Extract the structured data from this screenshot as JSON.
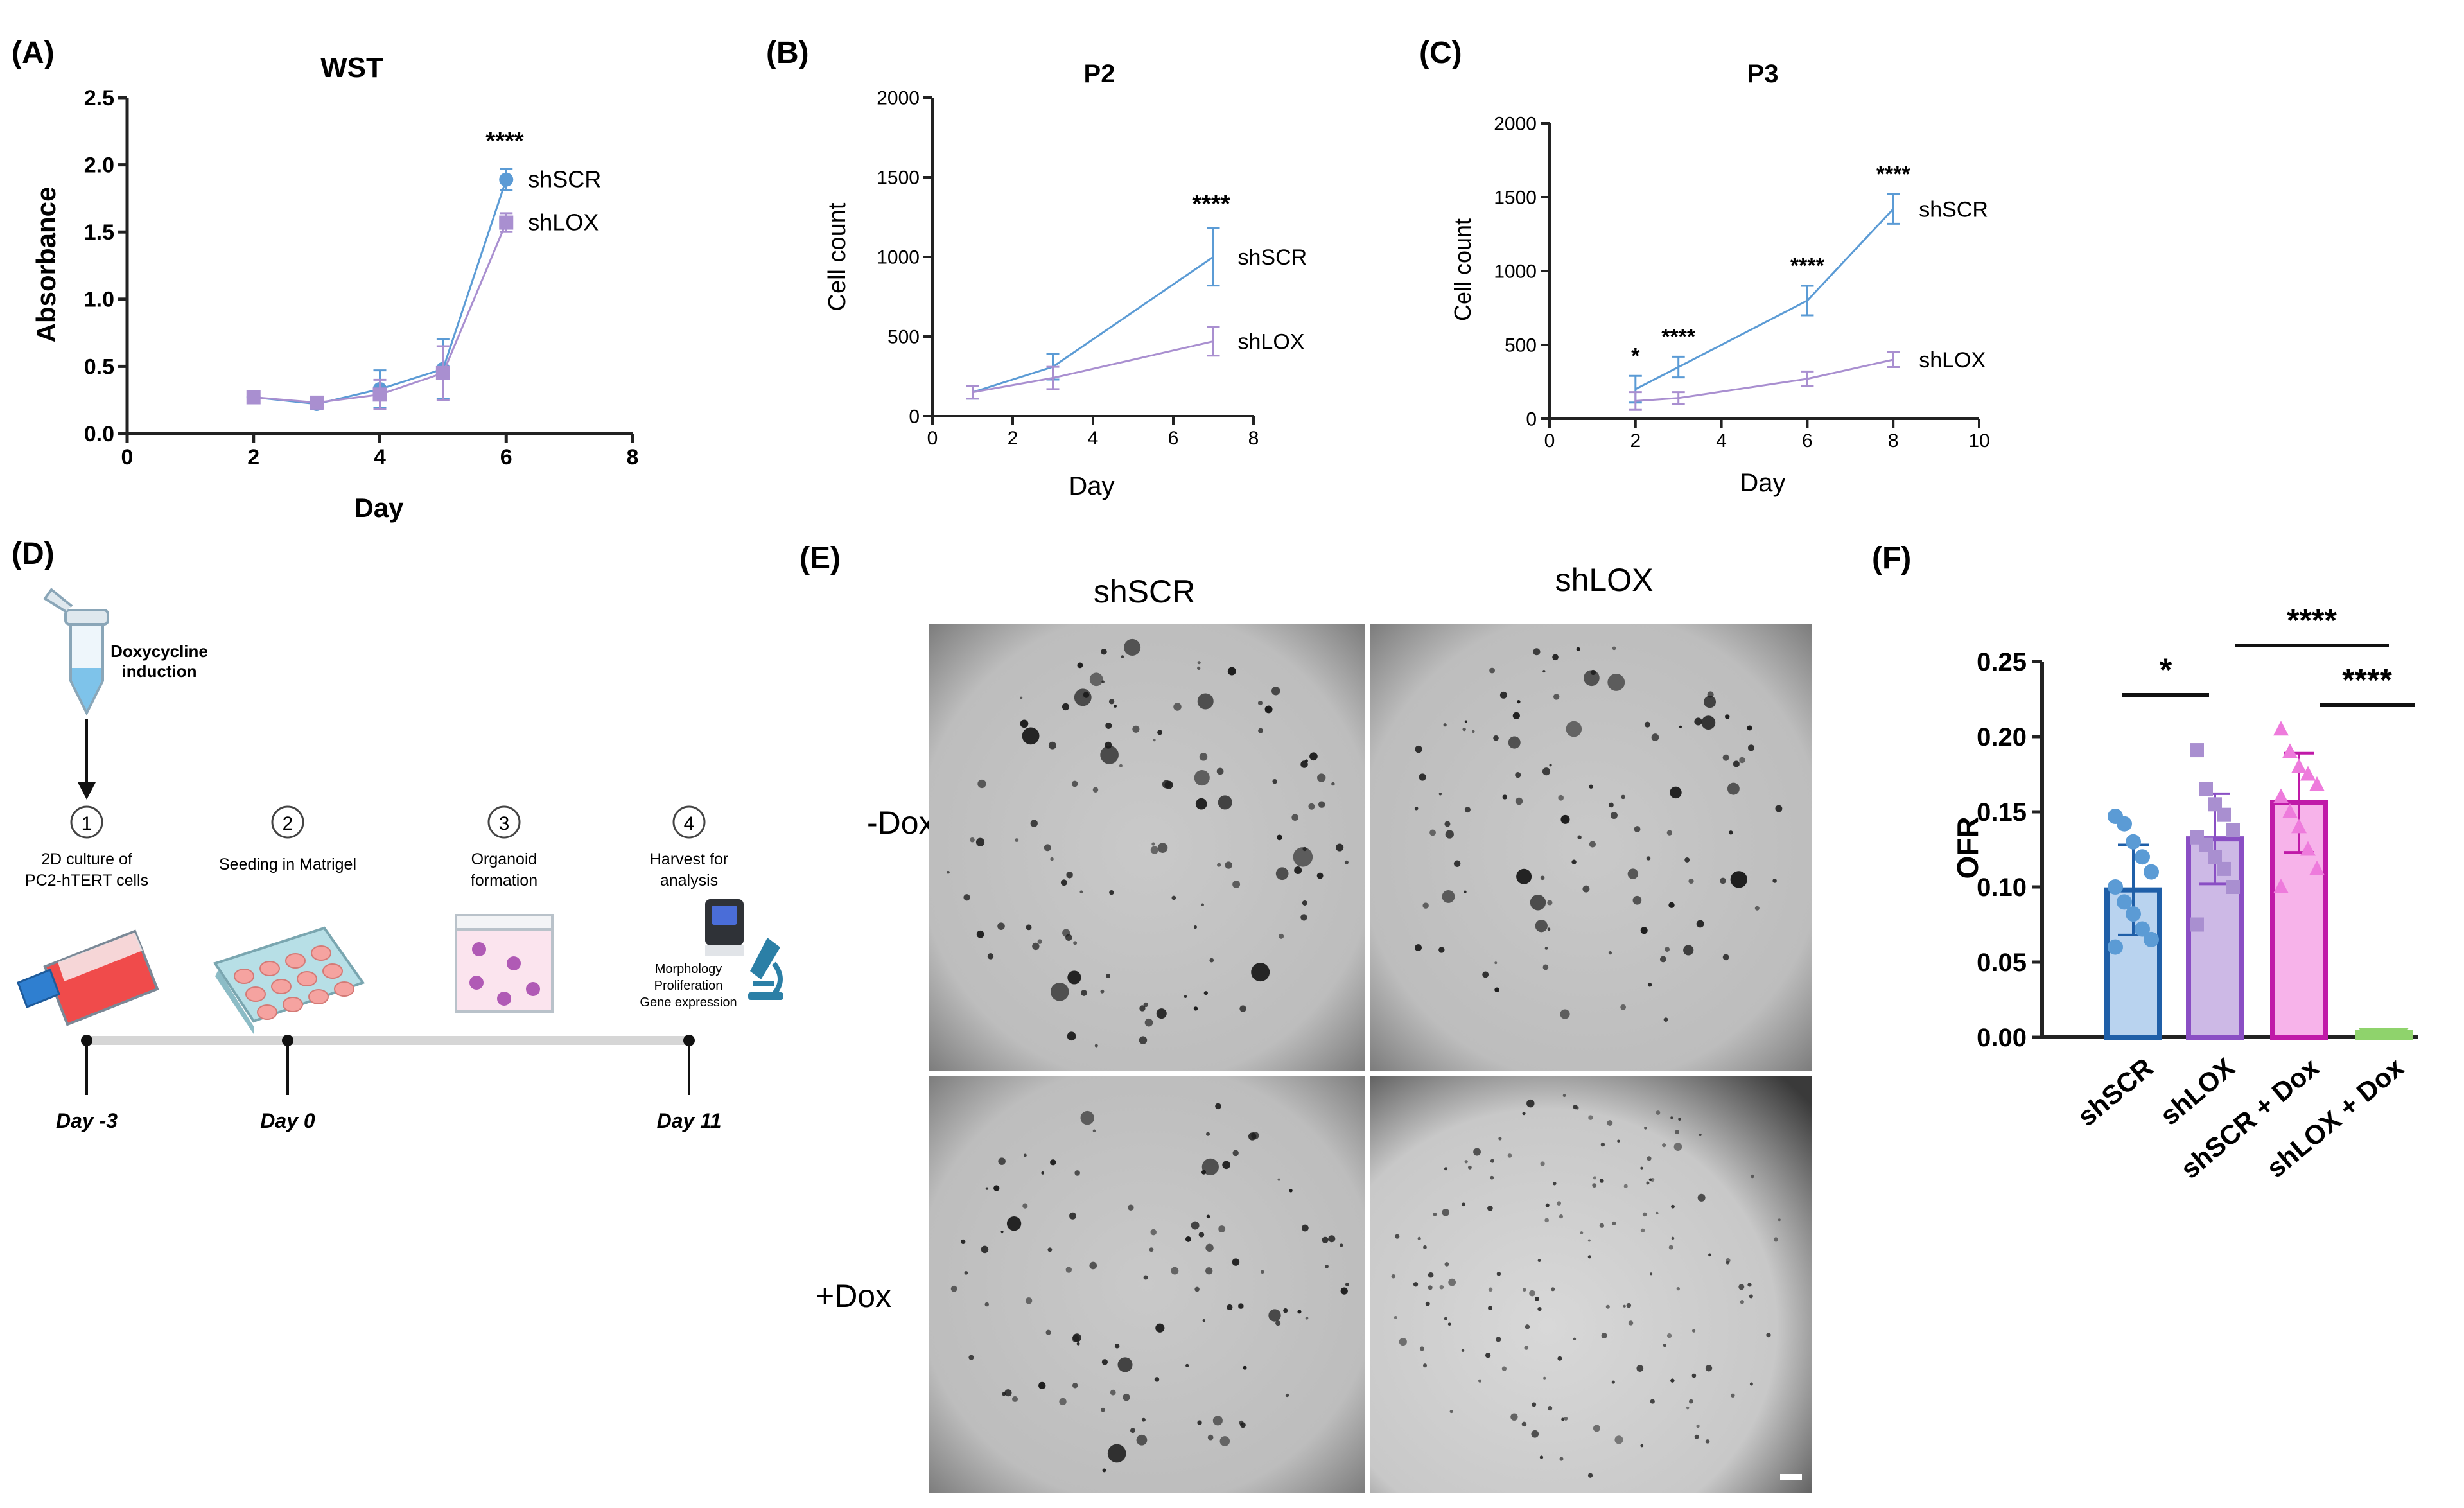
{
  "colors": {
    "shSCR": "#5b9bd5",
    "shLOX": "#a98fd0",
    "barSCR": "#b9d3ef",
    "barSCR_edge": "#1f5fa8",
    "barLOX": "#cdb9e6",
    "barLOX_edge": "#8a4fc4",
    "barSCRDox": "#f7b3ea",
    "barSCRDox_edge": "#c01aa8",
    "barLOXDox": "#8fd36c",
    "axis": "#222222"
  },
  "panelA": {
    "label": "(A)",
    "title": "WST",
    "xlabel": "Day",
    "ylabel": "Absorbance",
    "significance": "****",
    "chart_data": {
      "type": "line",
      "title": "WST",
      "xlabel": "Day",
      "ylabel": "Absorbance",
      "xlim": [
        0,
        8
      ],
      "ylim": [
        0,
        2.5
      ],
      "xticks": [
        "0",
        "2",
        "4",
        "6",
        "8"
      ],
      "yticks": [
        "0.0",
        "0.5",
        "1.0",
        "1.5",
        "2.0",
        "2.5"
      ],
      "x": [
        2,
        3,
        4,
        5,
        6
      ],
      "series": [
        {
          "name": "shSCR",
          "values": [
            0.27,
            0.22,
            0.33,
            0.48,
            1.89
          ],
          "err": [
            0.03,
            0.04,
            0.14,
            0.22,
            0.08
          ]
        },
        {
          "name": "shLOX",
          "values": [
            0.27,
            0.23,
            0.29,
            0.45,
            1.57
          ],
          "err": [
            0.03,
            0.04,
            0.11,
            0.2,
            0.07
          ]
        }
      ]
    }
  },
  "panelB": {
    "label": "(B)",
    "title": "P2",
    "xlabel": "Day",
    "ylabel": "Cell count",
    "significance": "****",
    "chart_data": {
      "type": "line",
      "title": "P2",
      "xlabel": "Day",
      "ylabel": "Cell count",
      "xlim": [
        0,
        8
      ],
      "ylim": [
        0,
        2000
      ],
      "xticks": [
        "0",
        "2",
        "4",
        "6",
        "8"
      ],
      "yticks": [
        "0",
        "500",
        "1000",
        "1500",
        "2000"
      ],
      "x": [
        1,
        3,
        7
      ],
      "series": [
        {
          "name": "shSCR",
          "values": [
            150,
            310,
            1000
          ],
          "err": [
            40,
            80,
            180
          ]
        },
        {
          "name": "shLOX",
          "values": [
            150,
            240,
            470
          ],
          "err": [
            40,
            70,
            90
          ]
        }
      ]
    }
  },
  "panelC": {
    "label": "(C)",
    "title": "P3",
    "xlabel": "Day",
    "ylabel": "Cell count",
    "chart_data": {
      "type": "line",
      "title": "P3",
      "xlabel": "Day",
      "ylabel": "Cell count",
      "xlim": [
        0,
        10
      ],
      "ylim": [
        0,
        2000
      ],
      "xticks": [
        "0",
        "2",
        "4",
        "6",
        "8",
        "10"
      ],
      "yticks": [
        "0",
        "500",
        "1000",
        "1500",
        "2000"
      ],
      "x": [
        2,
        3,
        6,
        8
      ],
      "significance": [
        "*",
        "****",
        "****",
        "****"
      ],
      "series": [
        {
          "name": "shSCR",
          "values": [
            200,
            350,
            800,
            1420
          ],
          "err": [
            90,
            70,
            100,
            100
          ]
        },
        {
          "name": "shLOX",
          "values": [
            120,
            140,
            270,
            400
          ],
          "err": [
            60,
            40,
            50,
            50
          ]
        }
      ]
    }
  },
  "panelD": {
    "label": "(D)",
    "tube_label": [
      "Doxycycline",
      "induction"
    ],
    "steps": [
      {
        "num": "1",
        "lines": [
          "2D culture of",
          "PC2-hTERT cells"
        ]
      },
      {
        "num": "2",
        "lines": [
          "Seeding in Matrigel"
        ]
      },
      {
        "num": "3",
        "lines": [
          "Organoid",
          "formation"
        ]
      },
      {
        "num": "4",
        "lines": [
          "Harvest for",
          "analysis"
        ]
      }
    ],
    "analysis_lines": [
      "Morphology",
      "Proliferation",
      "Gene expression"
    ],
    "days": [
      "Day -3",
      "Day 0",
      "Day 11"
    ]
  },
  "panelE": {
    "label": "(E)",
    "col_labels": [
      "shSCR",
      "shLOX"
    ],
    "row_labels": [
      "-Dox",
      "+Dox"
    ]
  },
  "panelF": {
    "label": "(F)",
    "ylabel": "OFR",
    "significance": [
      "*",
      "****",
      "****"
    ],
    "chart_data": {
      "type": "bar",
      "ylabel": "OFR",
      "ylim": [
        0,
        0.25
      ],
      "yticks": [
        "0.00",
        "0.05",
        "0.10",
        "0.15",
        "0.20",
        "0.25"
      ],
      "categories": [
        "shSCR",
        "shLOX",
        "shSCR + Dox",
        "shLOX + Dox"
      ],
      "values": [
        0.098,
        0.132,
        0.156,
        0.003
      ],
      "err": [
        0.03,
        0.03,
        0.033,
        0.001
      ],
      "points": [
        [
          0.147,
          0.142,
          0.13,
          0.12,
          0.11,
          0.1,
          0.09,
          0.082,
          0.072,
          0.065,
          0.06
        ],
        [
          0.191,
          0.165,
          0.155,
          0.148,
          0.138,
          0.133,
          0.128,
          0.12,
          0.112,
          0.1,
          0.075
        ],
        [
          0.205,
          0.19,
          0.18,
          0.175,
          0.168,
          0.16,
          0.15,
          0.14,
          0.125,
          0.112,
          0.1
        ],
        [
          0.003,
          0.003,
          0.003,
          0.003,
          0.003,
          0.003,
          0.003,
          0.003,
          0.003,
          0.003
        ]
      ]
    }
  }
}
